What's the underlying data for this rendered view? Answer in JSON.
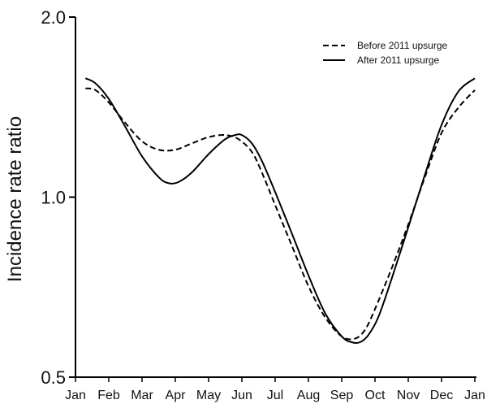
{
  "chart_data": {
    "type": "line",
    "title": "",
    "xlabel": "",
    "ylabel": "Incidence rate ratio",
    "categories": [
      "Jan",
      "Feb",
      "Mar",
      "Apr",
      "May",
      "Jun",
      "Jul",
      "Aug",
      "Sep",
      "Oct",
      "Nov",
      "Dec",
      "Jan"
    ],
    "yticks": [
      0.5,
      1.0,
      2.0
    ],
    "ytick_labels": [
      "0.5",
      "1.0",
      "2.0"
    ],
    "ylim": [
      0.5,
      2.0
    ],
    "yscale": "log",
    "grid": false,
    "legend_position": "top-right",
    "series": [
      {
        "name": "Before 2011 upsurge",
        "style": "dashed",
        "color": "#000000",
        "x": [
          0.3,
          0.6,
          1.0,
          1.5,
          2.0,
          2.5,
          3.0,
          3.5,
          4.0,
          4.5,
          4.9,
          5.3,
          5.6,
          6.0,
          6.5,
          7.0,
          7.5,
          8.0,
          8.4,
          8.7,
          9.0,
          9.5,
          10.0,
          10.5,
          11.0,
          11.5,
          12.0
        ],
        "values": [
          1.52,
          1.51,
          1.44,
          1.33,
          1.24,
          1.2,
          1.2,
          1.23,
          1.26,
          1.27,
          1.25,
          1.19,
          1.1,
          0.97,
          0.83,
          0.71,
          0.63,
          0.585,
          0.58,
          0.6,
          0.65,
          0.76,
          0.9,
          1.08,
          1.28,
          1.41,
          1.51
        ]
      },
      {
        "name": "After 2011 upsurge",
        "style": "solid",
        "color": "#000000",
        "x": [
          0.3,
          0.6,
          1.0,
          1.5,
          2.0,
          2.5,
          2.8,
          3.1,
          3.5,
          4.0,
          4.5,
          4.8,
          5.0,
          5.3,
          5.6,
          6.0,
          6.5,
          7.0,
          7.5,
          8.0,
          8.3,
          8.55,
          8.8,
          9.1,
          9.5,
          10.0,
          10.5,
          11.0,
          11.5,
          12.0
        ],
        "values": [
          1.58,
          1.55,
          1.46,
          1.31,
          1.17,
          1.08,
          1.055,
          1.06,
          1.1,
          1.18,
          1.25,
          1.27,
          1.27,
          1.23,
          1.15,
          1.02,
          0.87,
          0.74,
          0.64,
          0.585,
          0.572,
          0.572,
          0.588,
          0.63,
          0.73,
          0.89,
          1.09,
          1.32,
          1.5,
          1.58
        ]
      }
    ]
  }
}
